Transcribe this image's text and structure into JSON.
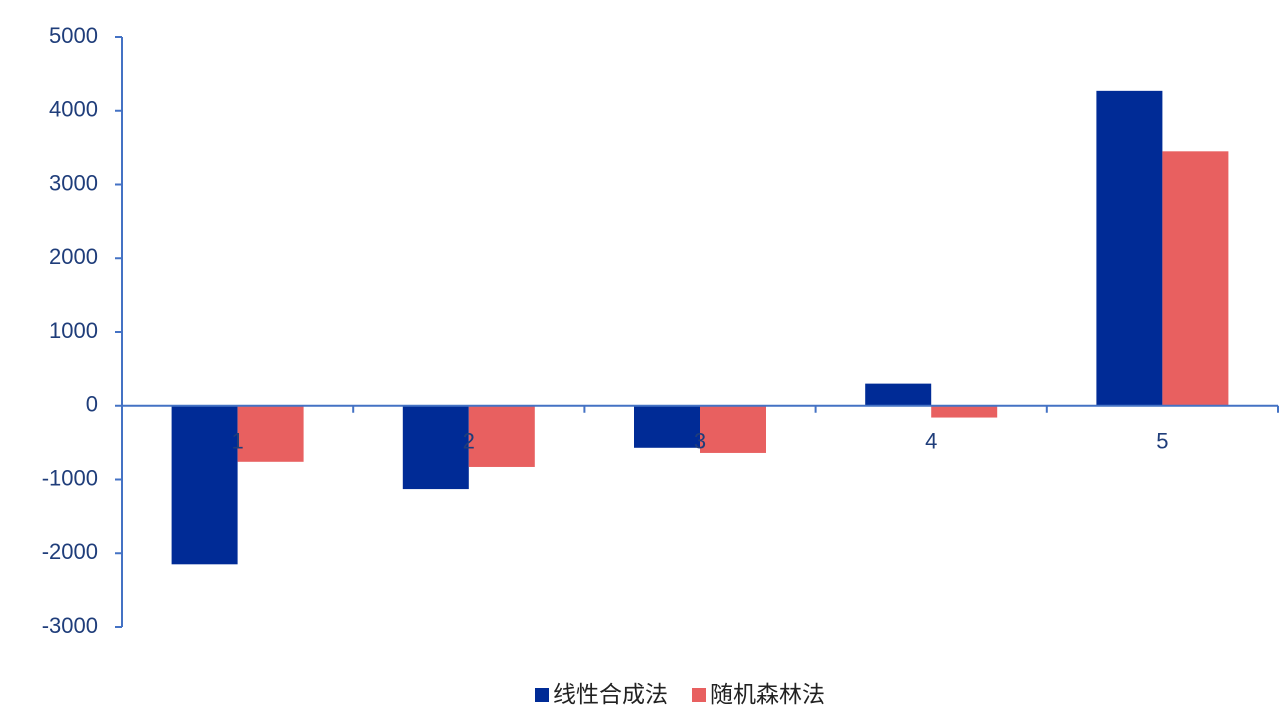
{
  "chart_data": {
    "type": "bar",
    "categories": [
      "1",
      "2",
      "3",
      "4",
      "5"
    ],
    "series": [
      {
        "name": "线性合成法",
        "color": "#002b96",
        "values": [
          -2150,
          -1130,
          -570,
          300,
          4270
        ]
      },
      {
        "name": "随机森林法",
        "color": "#e86060",
        "values": [
          -760,
          -830,
          -640,
          -160,
          3450
        ]
      }
    ],
    "ylim": [
      -3000,
      5000
    ],
    "yticks": [
      -3000,
      -2000,
      -1000,
      0,
      1000,
      2000,
      3000,
      4000,
      5000
    ],
    "grid": false,
    "legend": "bottom"
  }
}
